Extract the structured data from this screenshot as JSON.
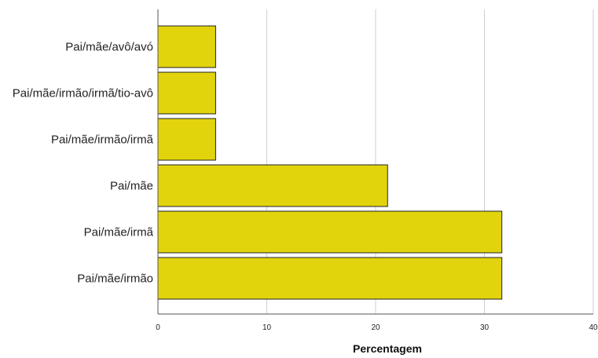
{
  "chart_data": {
    "type": "bar",
    "orientation": "horizontal",
    "categories": [
      "Pai/mãe/avô/avó",
      "Pai/mãe/irmão/irmã/tio-avô",
      "Pai/mãe/irmão/irmã",
      "Pai/mãe",
      "Pai/mãe/irmã",
      "Pai/mãe/irmão"
    ],
    "values": [
      5.3,
      5.3,
      5.3,
      21.1,
      31.6,
      31.6
    ],
    "xlabel": "Percentagem",
    "ylabel": "",
    "xlim": [
      0,
      40
    ],
    "xticks": [
      "0",
      "10",
      "20",
      "30",
      "40"
    ],
    "grid": true,
    "colors": {
      "bar": "#e2d40c",
      "bar_stroke": "#222222",
      "grid": "#cfcfcf",
      "axis": "#555555"
    }
  }
}
